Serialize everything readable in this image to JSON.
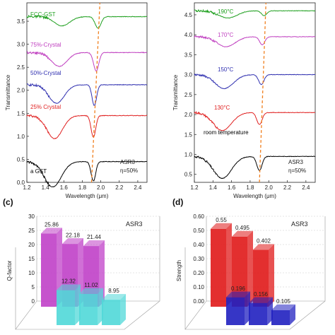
{
  "chart_data": [
    {
      "type": "line",
      "xlabel": "Wavelength (μm)",
      "ylabel": "Transmittance",
      "x_ticks": [
        "1.2",
        "1.4",
        "1.6",
        "1.8",
        "2.0",
        "2.2",
        "2.4"
      ],
      "y_ticks": [
        "0.0",
        "0.5",
        "1.0",
        "1.5",
        "2.0",
        "2.5",
        "3.0",
        "3.5"
      ],
      "xlim": [
        1.2,
        2.5
      ],
      "ylim": [
        0.0,
        3.9
      ],
      "annotations": [
        "ASR3",
        "η=50%"
      ],
      "series": [
        {
          "name": "a GST",
          "color": "#000000",
          "offset": 0.45,
          "dips": [
            [
              1.48,
              0.55,
              0.13
            ],
            [
              1.92,
              0.42,
              0.035
            ]
          ]
        },
        {
          "name": "25% Crystal",
          "color": "#e02020",
          "offset": 1.45,
          "dips": [
            [
              1.5,
              0.5,
              0.12
            ],
            [
              1.92,
              0.47,
              0.035
            ]
          ]
        },
        {
          "name": "50%-Crystal",
          "color": "#3030b0",
          "offset": 2.12,
          "dips": [
            [
              1.52,
              0.4,
              0.12
            ],
            [
              1.93,
              0.45,
              0.035
            ]
          ]
        },
        {
          "name": "75%-Crystal",
          "color": "#c040c0",
          "offset": 2.82,
          "dips": [
            [
              1.55,
              0.3,
              0.12
            ],
            [
              1.95,
              0.4,
              0.04
            ]
          ]
        },
        {
          "name": "FCC-GST",
          "color": "#20a020",
          "offset": 3.6,
          "dips": [
            [
              1.58,
              0.2,
              0.12
            ],
            [
              1.97,
              0.25,
              0.045
            ]
          ]
        }
      ],
      "resonance_line": {
        "x": [
          1.9,
          1.99
        ],
        "color": "#f08020"
      }
    },
    {
      "type": "line",
      "xlabel": "Wavelength (μm)",
      "ylabel": "Transmittance",
      "x_ticks": [
        "1.2",
        "1.4",
        "1.6",
        "1.8",
        "2.0",
        "2.2",
        "2.4"
      ],
      "y_ticks": [
        "0.5",
        "1.0",
        "1.5",
        "2.0",
        "2.5",
        "3.0",
        "3.5",
        "4.0",
        "4.5"
      ],
      "xlim": [
        1.2,
        2.5
      ],
      "ylim": [
        0.3,
        4.8
      ],
      "annotations": [
        "ASR3",
        "η=50%"
      ],
      "series": [
        {
          "name": "room temperature",
          "color": "#000000",
          "offset": 0.95,
          "dips": [
            [
              1.5,
              0.55,
              0.14
            ],
            [
              1.9,
              0.35,
              0.04
            ]
          ]
        },
        {
          "name": "130°C",
          "color": "#e02020",
          "offset": 2.05,
          "dips": [
            [
              1.5,
              0.45,
              0.14
            ],
            [
              1.9,
              0.3,
              0.04
            ]
          ]
        },
        {
          "name": "150°C",
          "color": "#3030b0",
          "offset": 3.0,
          "dips": [
            [
              1.52,
              0.35,
              0.14
            ],
            [
              1.92,
              0.25,
              0.04
            ]
          ]
        },
        {
          "name": "170°C",
          "color": "#c040c0",
          "offset": 3.95,
          "dips": [
            [
              1.54,
              0.25,
              0.14
            ],
            [
              1.93,
              0.2,
              0.04
            ]
          ]
        },
        {
          "name": "190°C",
          "color": "#20a020",
          "offset": 4.6,
          "dips": [
            [
              1.56,
              0.18,
              0.14
            ],
            [
              1.95,
              0.12,
              0.04
            ]
          ]
        }
      ],
      "resonance_line": {
        "x": [
          1.9,
          1.97
        ],
        "color": "#f08020"
      }
    },
    {
      "type": "bar",
      "ylabel": "Q-factor",
      "y_ticks": [
        "0",
        "5",
        "10",
        "15",
        "20",
        "25",
        "30"
      ],
      "ylim": [
        0,
        30
      ],
      "annotation": "ASR3",
      "series": [
        {
          "color": "#c040c8",
          "values": [
            25.86,
            22.18,
            21.44
          ]
        },
        {
          "color": "#50d8d8",
          "values": [
            12.32,
            11.02,
            8.95
          ]
        }
      ]
    },
    {
      "type": "bar",
      "ylabel": "Strength",
      "y_ticks": [
        "0.00",
        "0.10",
        "0.20",
        "0.30",
        "0.40",
        "0.50",
        "0.60"
      ],
      "ylim": [
        0,
        0.6
      ],
      "annotation": "ASR3",
      "series": [
        {
          "color": "#e01818",
          "values": [
            0.55,
            0.495,
            0.402
          ]
        },
        {
          "color": "#2020c0",
          "values": [
            0.196,
            0.156,
            0.105
          ]
        }
      ]
    }
  ],
  "panels": [
    "(c)",
    "(d)"
  ],
  "annotations": {
    "asr": "ASR3",
    "eta": "η=50%"
  }
}
